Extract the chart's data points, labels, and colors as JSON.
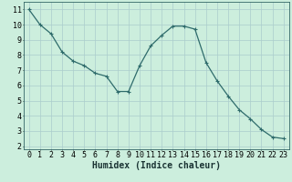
{
  "x": [
    0,
    1,
    2,
    3,
    4,
    5,
    6,
    7,
    8,
    9,
    10,
    11,
    12,
    13,
    14,
    15,
    16,
    17,
    18,
    19,
    20,
    21,
    22,
    23
  ],
  "y": [
    11,
    10,
    9.4,
    8.2,
    7.6,
    7.3,
    6.8,
    6.6,
    5.6,
    5.6,
    7.3,
    8.6,
    9.3,
    9.9,
    9.9,
    9.7,
    7.5,
    6.3,
    5.3,
    4.4,
    3.8,
    3.1,
    2.6,
    2.5
  ],
  "line_color": "#2e6b6b",
  "marker": "+",
  "marker_size": 3,
  "marker_linewidth": 0.8,
  "line_width": 0.9,
  "background_color": "#cceedd",
  "grid_color": "#aacccc",
  "xlabel": "Humidex (Indice chaleur)",
  "xlabel_fontsize": 7,
  "tick_fontsize": 6,
  "xlim": [
    -0.5,
    23.5
  ],
  "ylim": [
    1.8,
    11.5
  ],
  "yticks": [
    2,
    3,
    4,
    5,
    6,
    7,
    8,
    9,
    10,
    11
  ],
  "xticks": [
    0,
    1,
    2,
    3,
    4,
    5,
    6,
    7,
    8,
    9,
    10,
    11,
    12,
    13,
    14,
    15,
    16,
    17,
    18,
    19,
    20,
    21,
    22,
    23
  ],
  "spine_color": "#336666"
}
